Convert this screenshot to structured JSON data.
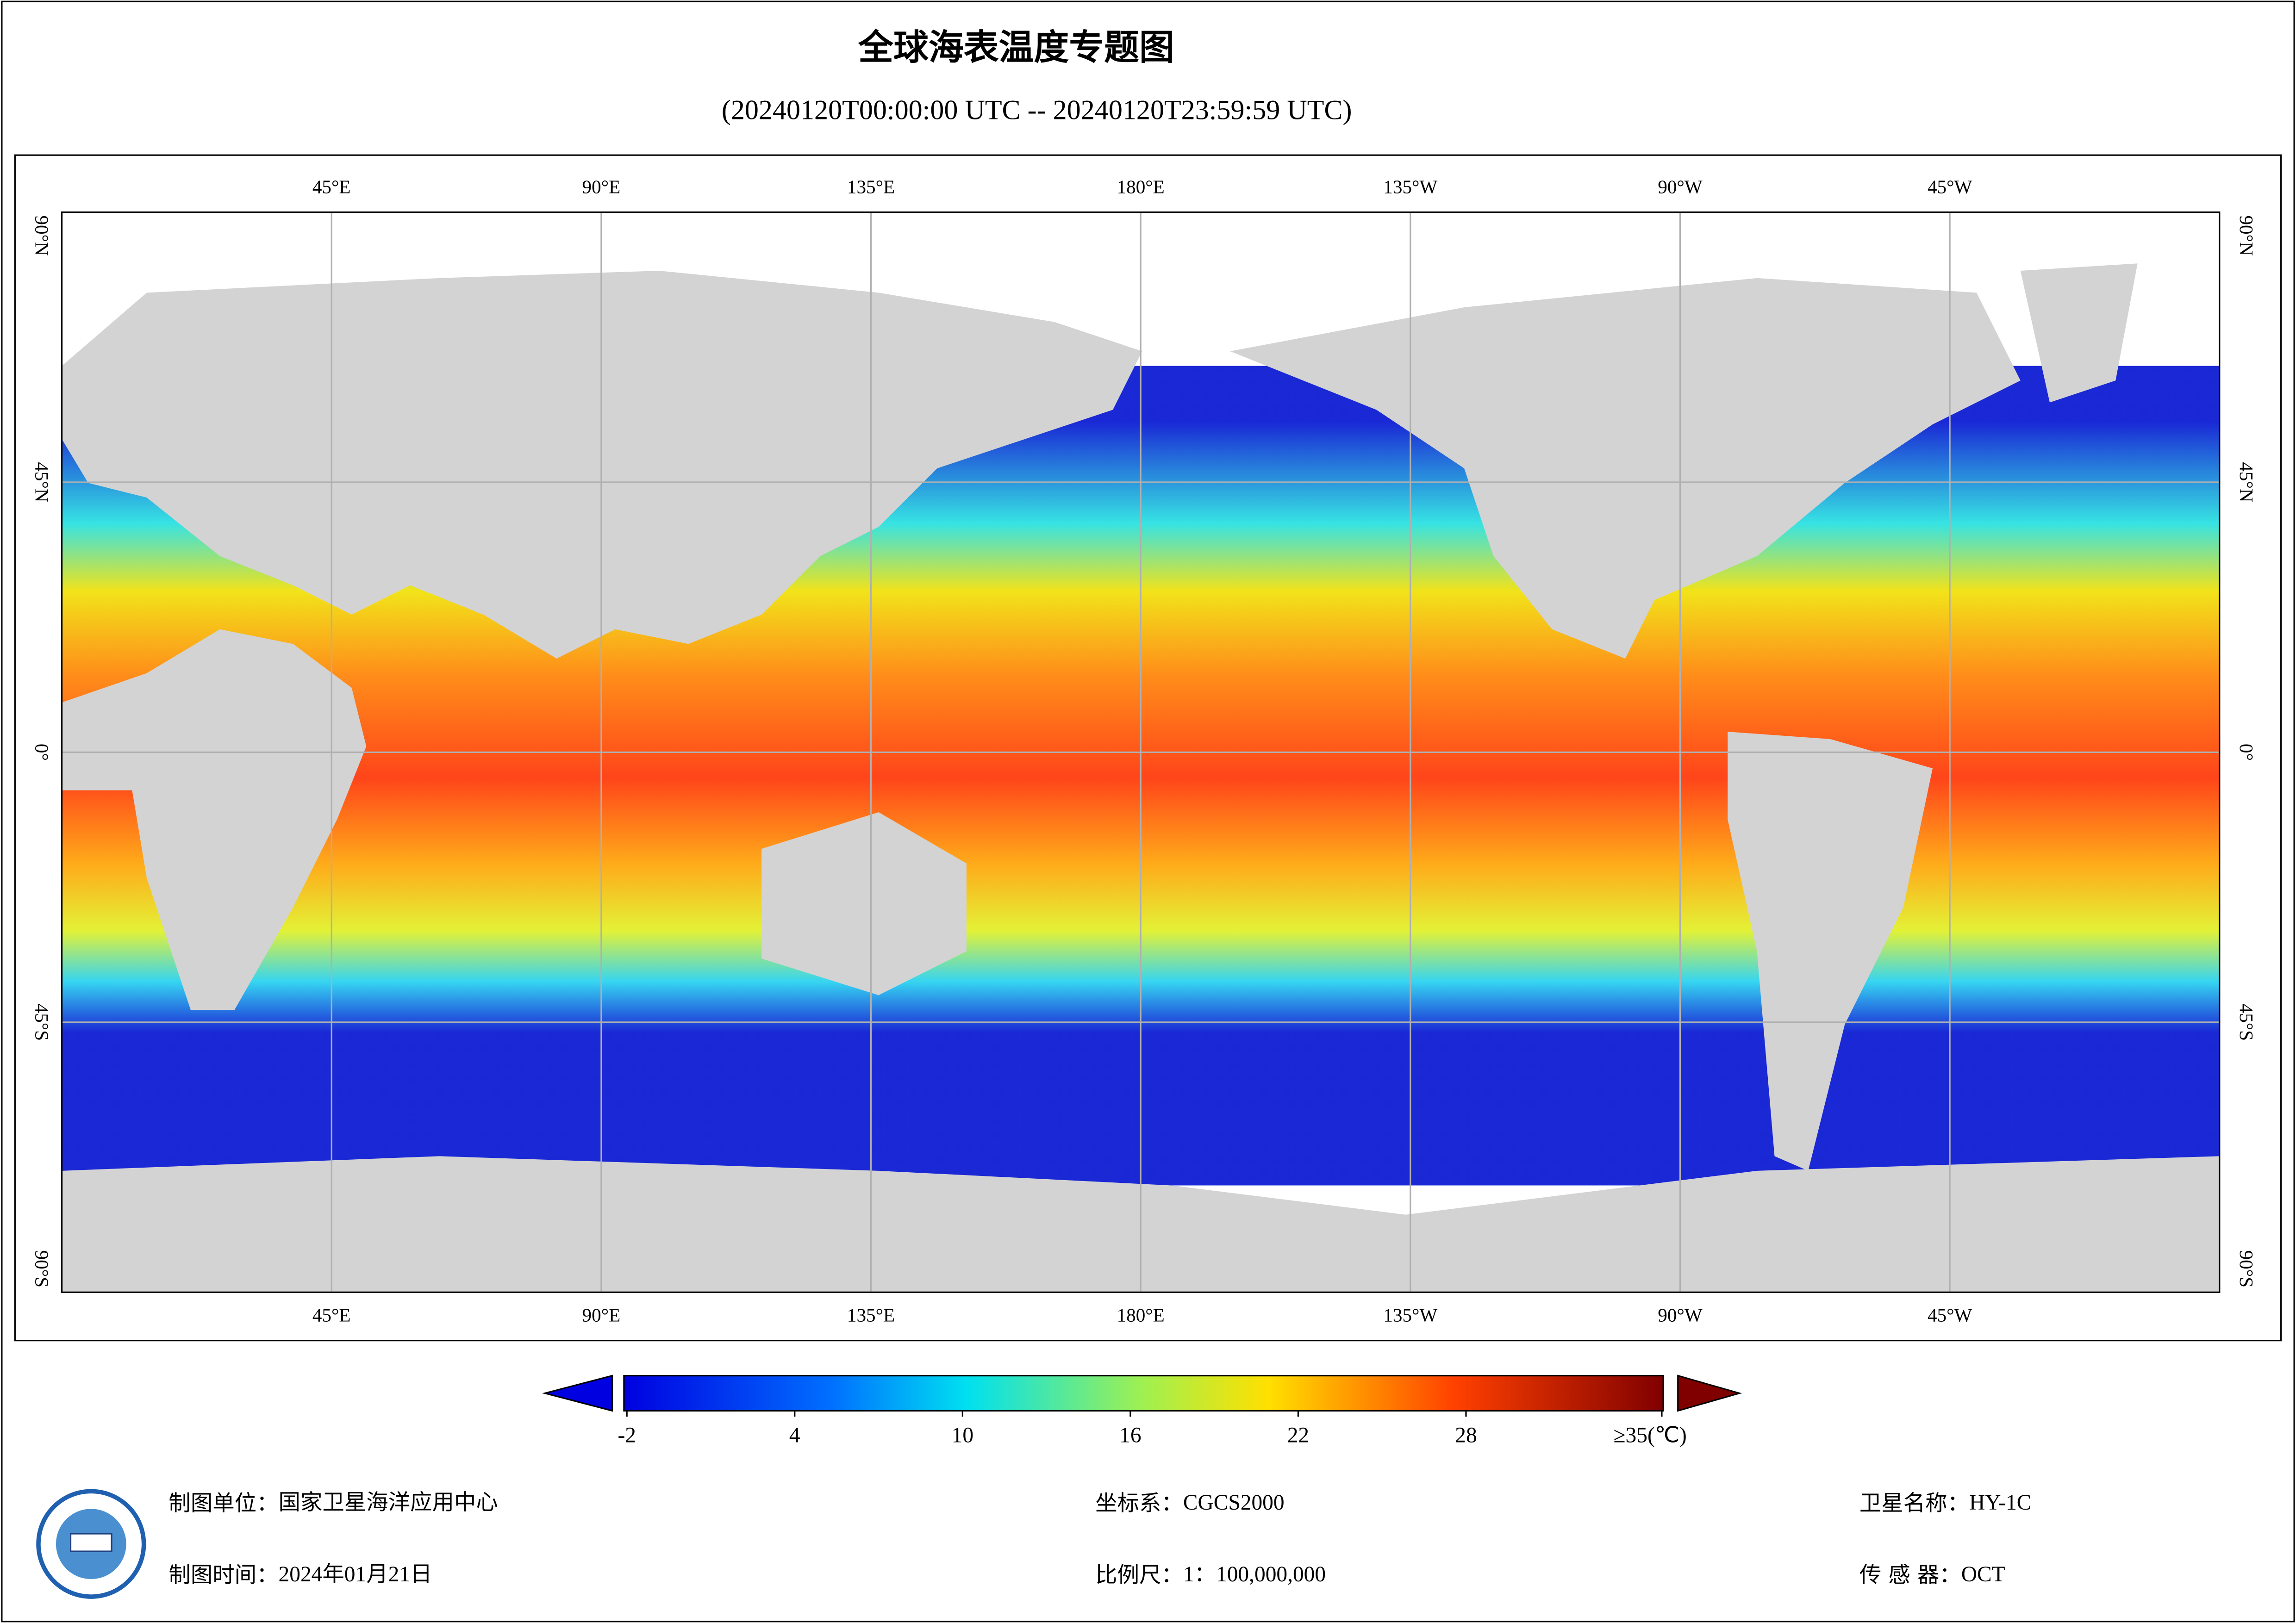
{
  "header": {
    "title": "全球海表温度专题图",
    "subtitle": "(20240120T00:00:00 UTC -- 20240120T23:59:59 UTC)"
  },
  "map": {
    "xlim": [
      0,
      360
    ],
    "ylim": [
      -90,
      90
    ],
    "lon_ticks": [
      {
        "value": 45,
        "label": "45°E"
      },
      {
        "value": 90,
        "label": "90°E"
      },
      {
        "value": 135,
        "label": "135°E"
      },
      {
        "value": 180,
        "label": "180°E"
      },
      {
        "value": 225,
        "label": "135°W"
      },
      {
        "value": 270,
        "label": "90°W"
      },
      {
        "value": 315,
        "label": "45°W"
      }
    ],
    "lat_ticks": [
      {
        "value": 90,
        "label": "90°N"
      },
      {
        "value": 45,
        "label": "45°N"
      },
      {
        "value": 0,
        "label": "0°"
      },
      {
        "value": -45,
        "label": "45°S"
      },
      {
        "value": -90,
        "label": "90°S"
      }
    ]
  },
  "colorbar": {
    "range": [
      -2,
      35
    ],
    "ticks": [
      -2,
      4,
      10,
      16,
      22,
      28,
      {
        "value": 35,
        "label": "≥35(℃)"
      }
    ]
  },
  "footer": [
    {
      "label": "制图单位：",
      "value": "国家卫星海洋应用中心"
    },
    {
      "label": "制图时间：",
      "value": "2024年01月21日"
    },
    {
      "label": "坐标系：",
      "value": "CGCS2000"
    },
    {
      "label": "比例尺：",
      "value": "1：100,000,000"
    },
    {
      "label": "卫星名称：",
      "value": "HY-1C"
    },
    {
      "label": "传 感 器：",
      "value": "OCT"
    }
  ]
}
